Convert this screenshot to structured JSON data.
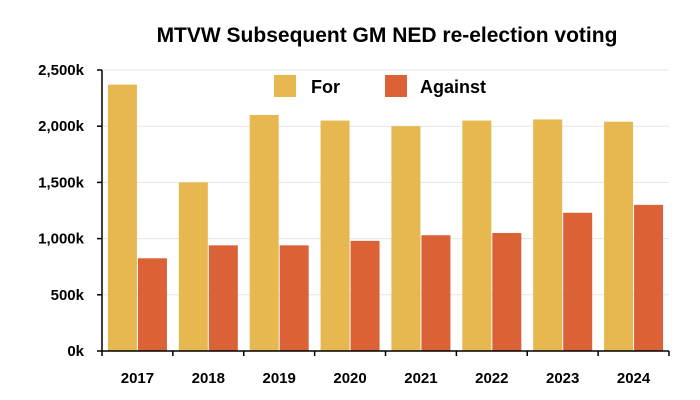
{
  "chart_data": {
    "type": "bar",
    "title": "MTVW Subsequent GM NED re-election voting",
    "xlabel": "",
    "ylabel": "",
    "categories": [
      "2017",
      "2018",
      "2019",
      "2020",
      "2021",
      "2022",
      "2023",
      "2024"
    ],
    "series": [
      {
        "name": "For",
        "color": "#E6B84F",
        "values": [
          2370,
          1500,
          2100,
          2050,
          2000,
          2050,
          2060,
          2040
        ]
      },
      {
        "name": "Against",
        "color": "#DB6136",
        "values": [
          825,
          940,
          940,
          980,
          1030,
          1050,
          1230,
          1300
        ]
      }
    ],
    "ylim": [
      0,
      2500
    ],
    "yticks": [
      {
        "value": 0,
        "label": "0k"
      },
      {
        "value": 500,
        "label": "500k"
      },
      {
        "value": 1000,
        "label": "1,000k"
      },
      {
        "value": 1500,
        "label": "1,500k"
      },
      {
        "value": 2000,
        "label": "2,000k"
      },
      {
        "value": 2500,
        "label": "2,500k"
      }
    ],
    "grid": true,
    "legend": "top-center"
  }
}
